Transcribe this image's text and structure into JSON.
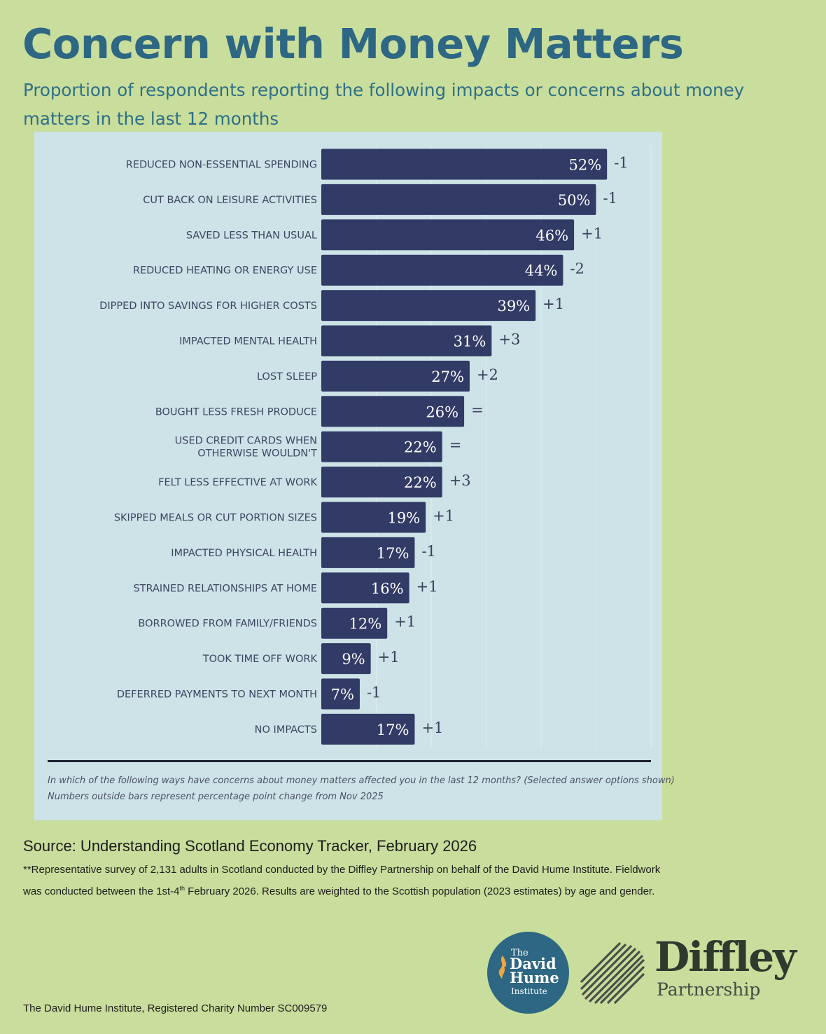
{
  "title": "Concern with Money Matters",
  "subtitle": "Proportion of respondents reporting the following impacts or concerns about money matters in the last 12 months",
  "chart_data": {
    "type": "bar",
    "orientation": "horizontal",
    "categories": [
      "REDUCED NON-ESSENTIAL SPENDING",
      "CUT BACK ON LEISURE ACTIVITIES",
      "SAVED LESS THAN USUAL",
      "REDUCED HEATING OR ENERGY USE",
      "DIPPED INTO SAVINGS FOR HIGHER COSTS",
      "IMPACTED MENTAL HEALTH",
      "LOST SLEEP",
      "BOUGHT LESS FRESH PRODUCE",
      "USED CREDIT CARDS WHEN OTHERWISE WOULDN'T",
      "FELT LESS EFFECTIVE AT WORK",
      "SKIPPED MEALS OR CUT PORTION SIZES",
      "IMPACTED PHYSICAL HEALTH",
      "STRAINED RELATIONSHIPS AT HOME",
      "BORROWED FROM FAMILY/FRIENDS",
      "TOOK TIME OFF WORK",
      "DEFERRED PAYMENTS TO NEXT MONTH",
      "NO IMPACTS"
    ],
    "values": [
      52,
      50,
      46,
      44,
      39,
      31,
      27,
      26,
      22,
      22,
      19,
      17,
      16,
      12,
      9,
      7,
      17
    ],
    "value_labels": [
      "52%",
      "50%",
      "46%",
      "44%",
      "39%",
      "31%",
      "27%",
      "26%",
      "22%",
      "22%",
      "19%",
      "17%",
      "16%",
      "12%",
      "9%",
      "7%",
      "17%"
    ],
    "changes": [
      "-1",
      "-1",
      "+1",
      "-2",
      "+1",
      "+3",
      "+2",
      "=",
      "=",
      "+3",
      "+1",
      "-1",
      "+1",
      "+1",
      "+1",
      "-1",
      "+1"
    ],
    "unit": "%",
    "xlim": [
      0,
      60
    ],
    "bar_color": "#323a66",
    "panel_color": "#cde3e8",
    "grid": true,
    "notes": [
      "In which of the following ways have concerns about money matters affected you in the last 12 months? (Selected answer options shown)",
      "Numbers outside bars represent percentage point change from Nov 2025"
    ]
  },
  "source": "Source: Understanding Scotland Economy Tracker, February 2026",
  "footnote": {
    "pre": "**Representative survey of 2,131 adults in Scotland conducted by the Diffley Partnership on behalf of the David Hume Institute. Fieldwork was conducted between the 1st-4",
    "sup": "th",
    "post": " February 2026. Results are weighted to the Scottish population (2023 estimates) by age and gender."
  },
  "charity": "The David Hume Institute, Registered Charity Number SC009579",
  "logos": {
    "dhi": {
      "line1": "The",
      "line2": "David",
      "line3": "Hume",
      "line4": "Institute"
    },
    "diffley": {
      "name": "Diffley",
      "sub": "Partnership"
    }
  }
}
